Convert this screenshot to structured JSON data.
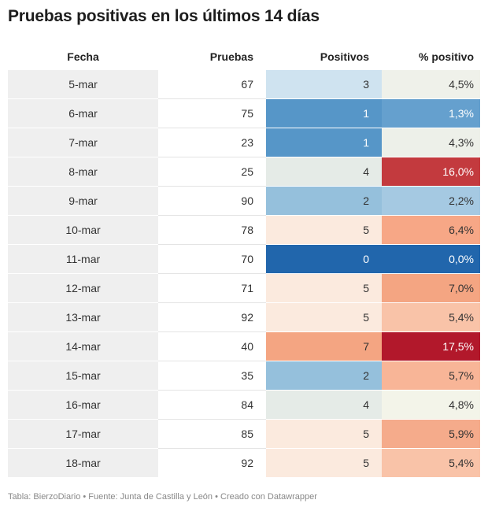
{
  "title": "Pruebas positivas en los últimos 14 días",
  "footer": "Tabla: BierzoDiario • Fuente: Junta de Castilla y León • Creado con Datawrapper",
  "chart_data": {
    "type": "table",
    "columns": [
      "Fecha",
      "Pruebas",
      "Positivos",
      "% positivo"
    ],
    "rows": [
      {
        "fecha": "5-mar",
        "pruebas": "67",
        "positivos": "3",
        "pct": "4,5%"
      },
      {
        "fecha": "6-mar",
        "pruebas": "75",
        "positivos": "1",
        "pct": "1,3%"
      },
      {
        "fecha": "7-mar",
        "pruebas": "23",
        "positivos": "1",
        "pct": "4,3%"
      },
      {
        "fecha": "8-mar",
        "pruebas": "25",
        "positivos": "4",
        "pct": "16,0%"
      },
      {
        "fecha": "9-mar",
        "pruebas": "90",
        "positivos": "2",
        "pct": "2,2%"
      },
      {
        "fecha": "10-mar",
        "pruebas": "78",
        "positivos": "5",
        "pct": "6,4%"
      },
      {
        "fecha": "11-mar",
        "pruebas": "70",
        "positivos": "0",
        "pct": "0,0%"
      },
      {
        "fecha": "12-mar",
        "pruebas": "71",
        "positivos": "5",
        "pct": "7,0%"
      },
      {
        "fecha": "13-mar",
        "pruebas": "92",
        "positivos": "5",
        "pct": "5,4%"
      },
      {
        "fecha": "14-mar",
        "pruebas": "40",
        "positivos": "7",
        "pct": "17,5%"
      },
      {
        "fecha": "15-mar",
        "pruebas": "35",
        "positivos": "2",
        "pct": "5,7%"
      },
      {
        "fecha": "16-mar",
        "pruebas": "84",
        "positivos": "4",
        "pct": "4,8%"
      },
      {
        "fecha": "17-mar",
        "pruebas": "85",
        "positivos": "5",
        "pct": "5,9%"
      },
      {
        "fecha": "18-mar",
        "pruebas": "92",
        "positivos": "5",
        "pct": "5,4%"
      }
    ],
    "colors": {
      "fecha_column_bg": "#efefef",
      "positivos_bg": [
        "#cfe3f0",
        "#5696c8",
        "#5696c8",
        "#e5ebe7",
        "#95c0dc",
        "#fbeade",
        "#2166ac",
        "#fbeade",
        "#fbeade",
        "#f4a582",
        "#95c0dc",
        "#e5ebe7",
        "#fbeade",
        "#fbeade"
      ],
      "pct_bg": [
        "#eff1ea",
        "#65a0ce",
        "#edf0e9",
        "#c33a3e",
        "#a5c9e2",
        "#f7a786",
        "#2166ac",
        "#f4a582",
        "#f9c3a8",
        "#b2182b",
        "#f8b597",
        "#f3f4e9",
        "#f5ab8b",
        "#f9c3a8"
      ],
      "light_text": "#ffffff",
      "dark_text": "#333333"
    }
  }
}
